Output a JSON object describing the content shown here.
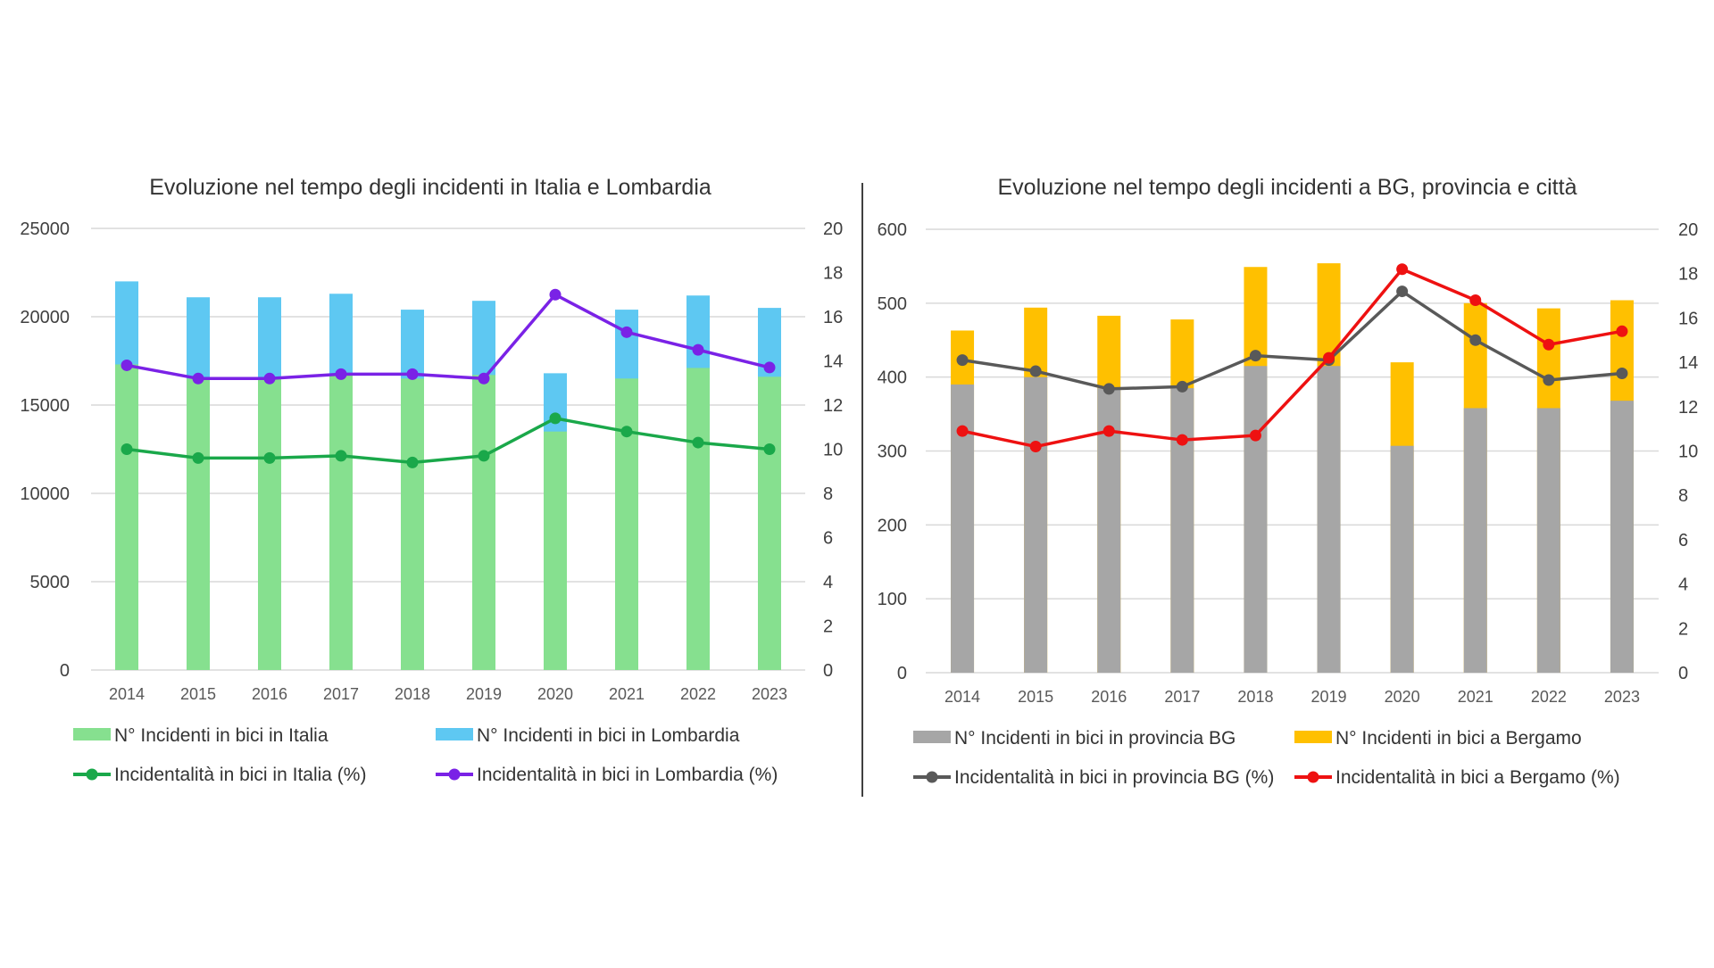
{
  "chart_data": [
    {
      "type": "bar",
      "title": "Evoluzione nel tempo degli incidenti in Italia e Lombardia",
      "categories": [
        "2014",
        "2015",
        "2016",
        "2017",
        "2018",
        "2019",
        "2020",
        "2021",
        "2022",
        "2023"
      ],
      "y_left": {
        "min": 0,
        "max": 25000,
        "ticks": [
          "0",
          "5000",
          "10000",
          "15000",
          "20000",
          "25000"
        ]
      },
      "y_right": {
        "min": 0,
        "max": 20,
        "ticks": [
          "0",
          "2",
          "4",
          "6",
          "8",
          "10",
          "12",
          "14",
          "16",
          "18",
          "20"
        ]
      },
      "grid": true,
      "legend_position": "bottom",
      "bar_series": [
        {
          "name": "N° Incidenti in bici in Italia",
          "color": "#86e08f",
          "values": [
            17300,
            16500,
            16500,
            16700,
            16500,
            16700,
            13500,
            16500,
            17100,
            16600
          ]
        },
        {
          "name": "N° Incidenti in bici in Lombardia",
          "color": "#5ec8f2",
          "values": [
            22000,
            21100,
            21100,
            21300,
            20400,
            20900,
            16800,
            20400,
            21200,
            20500
          ]
        }
      ],
      "line_series": [
        {
          "name": "Incidentalità in bici in Italia (%)",
          "color": "#1aa84a",
          "axis": "right",
          "values": [
            10.0,
            9.6,
            9.6,
            9.7,
            9.4,
            9.7,
            11.4,
            10.8,
            10.3,
            10.0
          ]
        },
        {
          "name": "Incidentalità in bici in Lombardia (%)",
          "color": "#7a22e6",
          "axis": "right",
          "values": [
            13.8,
            13.2,
            13.2,
            13.4,
            13.4,
            13.2,
            17.0,
            15.3,
            14.5,
            13.7
          ]
        }
      ]
    },
    {
      "type": "bar",
      "title": "Evoluzione nel tempo degli incidenti a BG, provincia e città",
      "categories": [
        "2014",
        "2015",
        "2016",
        "2017",
        "2018",
        "2019",
        "2020",
        "2021",
        "2022",
        "2023"
      ],
      "y_left": {
        "min": 0,
        "max": 600,
        "ticks": [
          "0",
          "100",
          "200",
          "300",
          "400",
          "500",
          "600"
        ]
      },
      "y_right": {
        "min": 0,
        "max": 20,
        "ticks": [
          "0",
          "2",
          "4",
          "6",
          "8",
          "10",
          "12",
          "14",
          "16",
          "18",
          "20"
        ]
      },
      "grid": true,
      "legend_position": "bottom",
      "bar_series": [
        {
          "name": "N° Incidenti in bici in provincia BG",
          "color": "#a6a6a6",
          "values": [
            390,
            400,
            385,
            385,
            415,
            415,
            307,
            358,
            358,
            368
          ]
        },
        {
          "name": "N° Incidenti in bici a Bergamo",
          "color": "#ffc000",
          "values": [
            463,
            494,
            483,
            478,
            549,
            554,
            420,
            500,
            493,
            504
          ]
        }
      ],
      "line_series": [
        {
          "name": "Incidentalità in bici in provincia BG (%)",
          "color": "#595959",
          "axis": "right",
          "values": [
            14.1,
            13.6,
            12.8,
            12.9,
            14.3,
            14.1,
            17.2,
            15.0,
            13.2,
            13.5
          ]
        },
        {
          "name": "Incidentalità in bici a Bergamo (%)",
          "color": "#ee1111",
          "axis": "right",
          "values": [
            10.9,
            10.2,
            10.9,
            10.5,
            10.7,
            14.2,
            18.2,
            16.8,
            14.8,
            15.4
          ]
        }
      ]
    }
  ]
}
